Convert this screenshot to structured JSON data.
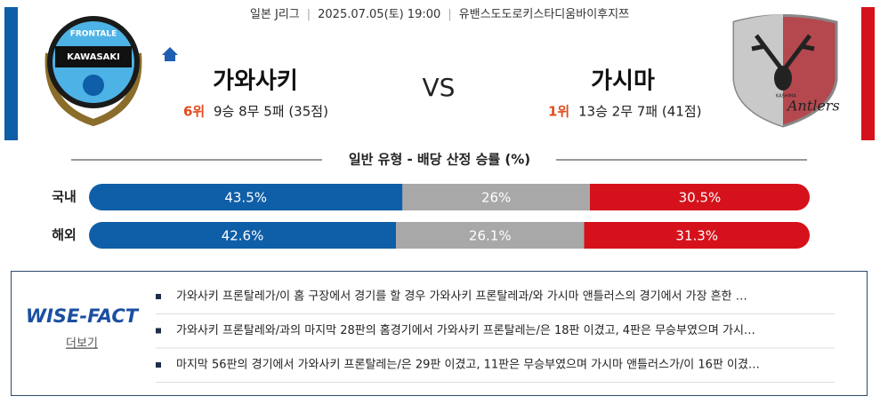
{
  "header": {
    "league": "일본 J리그",
    "datetime": "2025.07.05(토) 19:00",
    "venue": "유밴스도도로키스타디움바이후지쯔"
  },
  "home": {
    "name": "가와사키",
    "rank": "6위",
    "record": "9승 8무 5패 (35점)",
    "logo_top": "FRONTALE",
    "logo_name": "KAWASAKI"
  },
  "vs": "VS",
  "away": {
    "name": "가시마",
    "rank": "1위",
    "record": "13승 2무 7패 (41점)",
    "logo_top": "KASHIMA",
    "logo_name": "Antlers"
  },
  "odds": {
    "title": "일반 유형 - 배당 산정 승률 (%)",
    "colors": [
      "#0f5ea8",
      "#a8a8a8",
      "#d5121b"
    ],
    "rows": [
      {
        "label": "국내",
        "values": [
          43.5,
          26,
          30.5
        ],
        "value_labels": [
          "43.5%",
          "26%",
          "30.5%"
        ]
      },
      {
        "label": "해외",
        "values": [
          42.6,
          26.1,
          31.3
        ],
        "value_labels": [
          "42.6%",
          "26.1%",
          "31.3%"
        ]
      }
    ]
  },
  "wise_fact": {
    "logo": "WISE-FACT",
    "more": "더보기",
    "items": [
      "가와사키 프론탈레가/이 홈 구장에서 경기를 할 경우 가와사키 프론탈레과/와 가시마 앤틀러스의 경기에서 가장 흔한 …",
      "가와사키 프론탈레와/과의 마지막 28판의 홈경기에서 가와사키 프론탈레는/은 18판 이겼고, 4판은 무승부였으며 가시…",
      "마지막 56판의 경기에서 가와사키 프론탈레는/은 29판 이겼고, 11판은 무승부였으며 가시마 앤틀러스가/이 16판 이겼…"
    ]
  }
}
